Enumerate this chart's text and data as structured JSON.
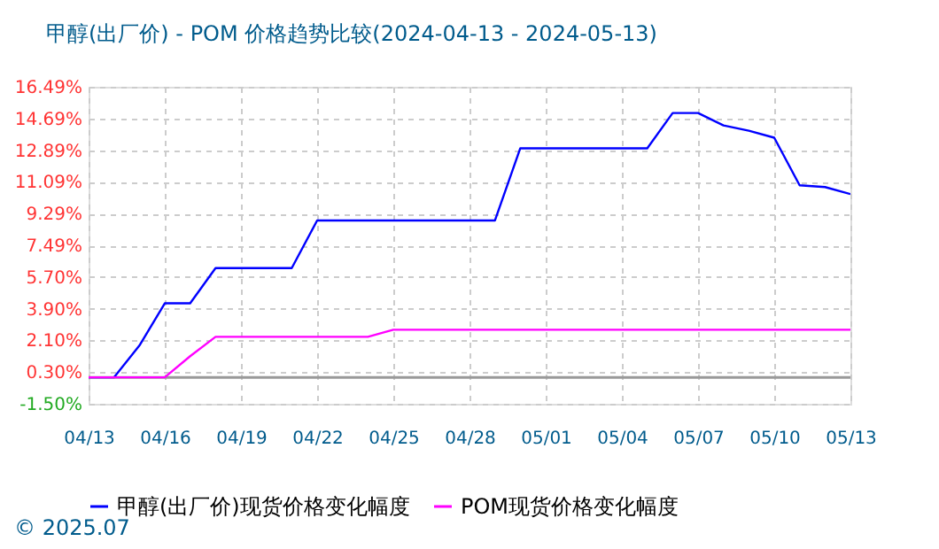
{
  "chart_data": {
    "type": "line",
    "title": "甲醇(出厂价) - POM 价格趋势比较(2024-04-13 - 2024-05-13)",
    "x": [
      "2024-04-13",
      "2024-04-14",
      "2024-04-15",
      "2024-04-16",
      "2024-04-17",
      "2024-04-18",
      "2024-04-19",
      "2024-04-20",
      "2024-04-21",
      "2024-04-22",
      "2024-04-23",
      "2024-04-24",
      "2024-04-25",
      "2024-04-26",
      "2024-04-27",
      "2024-04-28",
      "2024-04-29",
      "2024-04-30",
      "2024-05-01",
      "2024-05-02",
      "2024-05-03",
      "2024-05-04",
      "2024-05-05",
      "2024-05-06",
      "2024-05-07",
      "2024-05-08",
      "2024-05-09",
      "2024-05-10",
      "2024-05-11",
      "2024-05-12",
      "2024-05-13"
    ],
    "series": [
      {
        "name": "甲醇(出厂价)现货价格变化幅度",
        "color": "#0000ff",
        "values": [
          0,
          0,
          1.8,
          4.2,
          4.2,
          6.2,
          6.2,
          6.2,
          6.2,
          8.9,
          8.9,
          8.9,
          8.9,
          8.9,
          8.9,
          8.9,
          8.9,
          13.0,
          13.0,
          13.0,
          13.0,
          13.0,
          13.0,
          15.0,
          15.0,
          14.3,
          14.0,
          13.6,
          10.9,
          10.8,
          10.4
        ]
      },
      {
        "name": "POM现货价格变化幅度",
        "color": "#ff00ff",
        "values": [
          0,
          0,
          0,
          0,
          1.2,
          2.3,
          2.3,
          2.3,
          2.3,
          2.3,
          2.3,
          2.3,
          2.7,
          2.7,
          2.7,
          2.7,
          2.7,
          2.7,
          2.7,
          2.7,
          2.7,
          2.7,
          2.7,
          2.7,
          2.7,
          2.7,
          2.7,
          2.7,
          2.7,
          2.7,
          2.7
        ]
      }
    ],
    "xlim": [
      "2024-04-13",
      "2024-05-13"
    ],
    "xticks": [
      {
        "value": "2024-04-13",
        "label": "04/13"
      },
      {
        "value": "2024-04-16",
        "label": "04/16"
      },
      {
        "value": "2024-04-19",
        "label": "04/19"
      },
      {
        "value": "2024-04-22",
        "label": "04/22"
      },
      {
        "value": "2024-04-25",
        "label": "04/25"
      },
      {
        "value": "2024-04-28",
        "label": "04/28"
      },
      {
        "value": "2024-05-01",
        "label": "05/01"
      },
      {
        "value": "2024-05-04",
        "label": "05/04"
      },
      {
        "value": "2024-05-07",
        "label": "05/07"
      },
      {
        "value": "2024-05-10",
        "label": "05/10"
      },
      {
        "value": "2024-05-13",
        "label": "05/13"
      }
    ],
    "ylim": [
      -1.5,
      16.49
    ],
    "yticks": [
      {
        "value": -1.5,
        "label": "-1.50%"
      },
      {
        "value": 0.3,
        "label": "0.30%"
      },
      {
        "value": 2.1,
        "label": "2.10%"
      },
      {
        "value": 3.9,
        "label": "3.90%"
      },
      {
        "value": 5.7,
        "label": "5.70%"
      },
      {
        "value": 7.49,
        "label": "7.49%"
      },
      {
        "value": 9.29,
        "label": "9.29%"
      },
      {
        "value": 11.09,
        "label": "11.09%"
      },
      {
        "value": 12.89,
        "label": "12.89%"
      },
      {
        "value": 14.69,
        "label": "14.69%"
      },
      {
        "value": 16.49,
        "label": "16.49%"
      }
    ],
    "ref_lines": [
      {
        "axis": "y",
        "value": 0,
        "color": "#999999"
      }
    ],
    "grid": true,
    "legend": "bottom",
    "marker": "none",
    "line_style": "solid",
    "annotations": [
      "© 2025.07"
    ]
  }
}
